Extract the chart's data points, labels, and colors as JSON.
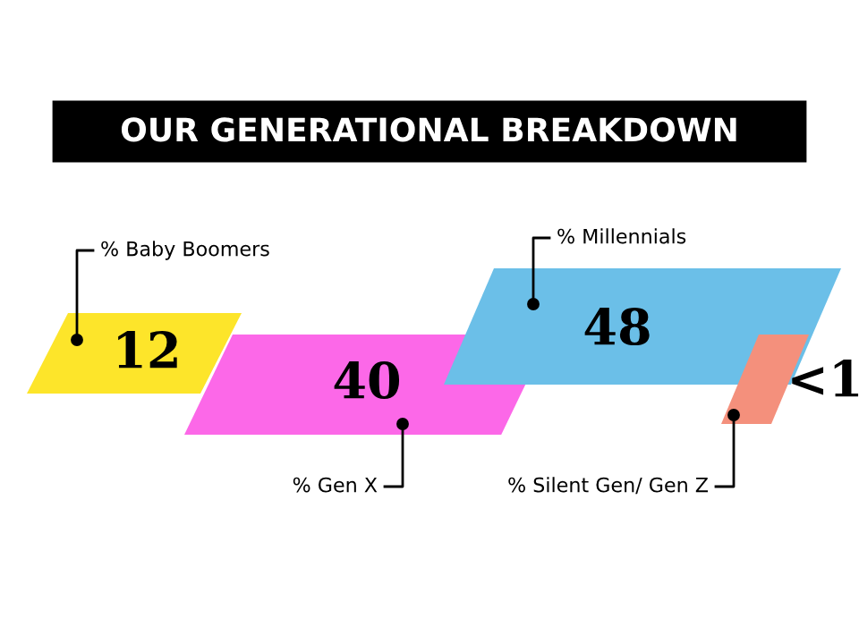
{
  "chart_data": {
    "type": "other",
    "title": "OUR GENERATIONAL BREAKDOWN",
    "categories": [
      "% Baby Boomers",
      "% Gen X",
      "% Millennials",
      "% Silent Gen/ Gen Z"
    ],
    "values": [
      12,
      40,
      48,
      1
    ],
    "value_labels": [
      "12",
      "40",
      "48",
      "<1"
    ],
    "colors": [
      "#fde52a",
      "#fc68e8",
      "#6bbfe8",
      "#f4907c"
    ]
  }
}
